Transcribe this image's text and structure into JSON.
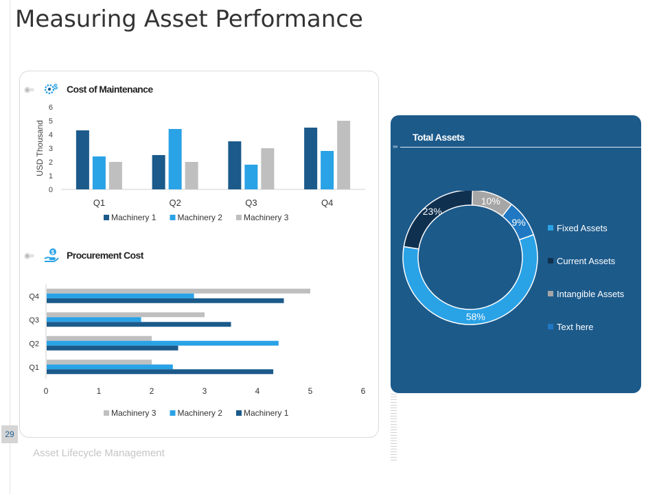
{
  "page": {
    "title": "Measuring Asset Performance",
    "page_number": "29",
    "footer": "Asset Lifecycle Management"
  },
  "sections": {
    "maintenance_title": "Cost of Maintenance",
    "procurement_title": "Procurement Cost",
    "total_assets_title": "Total Assets"
  },
  "colors": {
    "machinery1": "#1b5a8a",
    "machinery2": "#2aa2e6",
    "machinery3": "#bfbfbf",
    "panel_bg": "#1c5a8a",
    "fixed": "#2aa2e6",
    "current": "#10304f",
    "intangible": "#a6a6a6",
    "text_here": "#1f78c1"
  },
  "chart_data": [
    {
      "type": "bar",
      "orientation": "vertical",
      "title": "Cost of Maintenance",
      "xlabel": "",
      "ylabel": "USD Thousand",
      "categories": [
        "Q1",
        "Q2",
        "Q3",
        "Q4"
      ],
      "series": [
        {
          "name": "Machinery 1",
          "values": [
            4.3,
            2.5,
            3.5,
            4.5
          ]
        },
        {
          "name": "Machinery 2",
          "values": [
            2.4,
            4.4,
            1.8,
            2.8
          ]
        },
        {
          "name": "Machinery 3",
          "values": [
            2.0,
            2.0,
            3.0,
            5.0
          ]
        }
      ],
      "ylim": [
        0,
        6
      ],
      "yticks": [
        0,
        1,
        2,
        3,
        4,
        5,
        6
      ],
      "legend": "bottom"
    },
    {
      "type": "bar",
      "orientation": "horizontal",
      "title": "Procurement Cost",
      "categories": [
        "Q1",
        "Q2",
        "Q3",
        "Q4"
      ],
      "series": [
        {
          "name": "Machinery 1",
          "values": [
            4.3,
            2.5,
            3.5,
            4.5
          ]
        },
        {
          "name": "Machinery 2",
          "values": [
            2.4,
            4.4,
            1.8,
            2.8
          ]
        },
        {
          "name": "Machinery 3",
          "values": [
            2.0,
            2.0,
            3.0,
            5.0
          ]
        }
      ],
      "legend_order": [
        "Machinery 3",
        "Machinery 2",
        "Machinery 1"
      ],
      "xlim": [
        0,
        6
      ],
      "xticks": [
        0,
        1,
        2,
        3,
        4,
        5,
        6
      ],
      "legend": "bottom"
    },
    {
      "type": "pie",
      "style": "donut",
      "title": "Total Assets",
      "slices": [
        {
          "name": "Fixed Assets",
          "value": 58,
          "label": "58%"
        },
        {
          "name": "Current Assets",
          "value": 23,
          "label": "23%"
        },
        {
          "name": "Intangible Assets",
          "value": 10,
          "label": "10%"
        },
        {
          "name": "Text here",
          "value": 9,
          "label": "9%"
        }
      ],
      "legend_order": [
        "Fixed Assets",
        "Current Assets",
        "Intangible Assets",
        "Text here"
      ],
      "legend": "right"
    }
  ]
}
